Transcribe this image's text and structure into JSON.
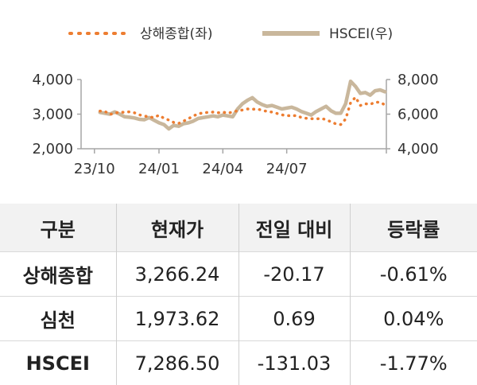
{
  "chart_data": {
    "type": "line",
    "title": "",
    "legend": {
      "placement": "top-center"
    },
    "x_ticks": [
      "23/10",
      "24/01",
      "24/04",
      "24/07"
    ],
    "y_left": {
      "range": [
        2000,
        4000
      ],
      "ticks": [
        "2,000",
        "3,000",
        "4,000"
      ]
    },
    "y_right": {
      "range": [
        4000,
        8000
      ],
      "ticks": [
        "4,000",
        "6,000",
        "8,000"
      ]
    },
    "grid": false,
    "series": [
      {
        "name": "상해종합(좌)",
        "axis": "left",
        "style": "dotted",
        "color": "#ed7d31",
        "points": [
          [
            "2023-10-09",
            3090
          ],
          [
            "2023-10-16",
            3080
          ],
          [
            "2023-10-23",
            2990
          ],
          [
            "2023-10-30",
            3030
          ],
          [
            "2023-11-06",
            3060
          ],
          [
            "2023-11-13",
            3050
          ],
          [
            "2023-11-20",
            3070
          ],
          [
            "2023-11-27",
            3040
          ],
          [
            "2023-12-04",
            2980
          ],
          [
            "2023-12-11",
            2950
          ],
          [
            "2023-12-18",
            2920
          ],
          [
            "2023-12-25",
            2900
          ],
          [
            "2024-01-01",
            2970
          ],
          [
            "2024-01-08",
            2880
          ],
          [
            "2024-01-15",
            2830
          ],
          [
            "2024-01-22",
            2760
          ],
          [
            "2024-01-29",
            2730
          ],
          [
            "2024-02-05",
            2800
          ],
          [
            "2024-02-12",
            2870
          ],
          [
            "2024-02-19",
            2950
          ],
          [
            "2024-02-26",
            3010
          ],
          [
            "2024-03-04",
            3040
          ],
          [
            "2024-03-11",
            3050
          ],
          [
            "2024-03-18",
            3060
          ],
          [
            "2024-03-25",
            3040
          ],
          [
            "2024-04-01",
            3060
          ],
          [
            "2024-04-08",
            3030
          ],
          [
            "2024-04-15",
            3060
          ],
          [
            "2024-04-22",
            3100
          ],
          [
            "2024-04-29",
            3120
          ],
          [
            "2024-05-06",
            3150
          ],
          [
            "2024-05-13",
            3140
          ],
          [
            "2024-05-20",
            3150
          ],
          [
            "2024-05-27",
            3110
          ],
          [
            "2024-06-03",
            3080
          ],
          [
            "2024-06-10",
            3060
          ],
          [
            "2024-06-17",
            3020
          ],
          [
            "2024-06-24",
            2980
          ],
          [
            "2024-07-01",
            2960
          ],
          [
            "2024-07-08",
            2950
          ],
          [
            "2024-07-15",
            2960
          ],
          [
            "2024-07-22",
            2900
          ],
          [
            "2024-07-29",
            2880
          ],
          [
            "2024-08-05",
            2870
          ],
          [
            "2024-08-12",
            2860
          ],
          [
            "2024-08-19",
            2880
          ],
          [
            "2024-08-26",
            2840
          ],
          [
            "2024-09-02",
            2780
          ],
          [
            "2024-09-09",
            2720
          ],
          [
            "2024-09-16",
            2700
          ],
          [
            "2024-09-23",
            2860
          ],
          [
            "2024-09-30",
            3330
          ],
          [
            "2024-10-07",
            3490
          ],
          [
            "2024-10-14",
            3250
          ],
          [
            "2024-10-21",
            3300
          ],
          [
            "2024-10-28",
            3280
          ],
          [
            "2024-11-04",
            3350
          ],
          [
            "2024-11-11",
            3340
          ],
          [
            "2024-11-18",
            3270
          ]
        ]
      },
      {
        "name": "HSCEI(우)",
        "axis": "right",
        "style": "solid",
        "color": "#c9b79c",
        "points": [
          [
            "2023-10-09",
            6100
          ],
          [
            "2023-10-16",
            6050
          ],
          [
            "2023-10-23",
            6000
          ],
          [
            "2023-10-30",
            6130
          ],
          [
            "2023-11-06",
            6000
          ],
          [
            "2023-11-13",
            5850
          ],
          [
            "2023-11-20",
            5820
          ],
          [
            "2023-11-27",
            5780
          ],
          [
            "2023-12-04",
            5700
          ],
          [
            "2023-12-11",
            5680
          ],
          [
            "2023-12-18",
            5800
          ],
          [
            "2023-12-25",
            5650
          ],
          [
            "2024-01-01",
            5500
          ],
          [
            "2024-01-08",
            5400
          ],
          [
            "2024-01-15",
            5150
          ],
          [
            "2024-01-22",
            5350
          ],
          [
            "2024-01-29",
            5300
          ],
          [
            "2024-02-05",
            5450
          ],
          [
            "2024-02-12",
            5500
          ],
          [
            "2024-02-19",
            5600
          ],
          [
            "2024-02-26",
            5750
          ],
          [
            "2024-03-04",
            5800
          ],
          [
            "2024-03-11",
            5850
          ],
          [
            "2024-03-18",
            5900
          ],
          [
            "2024-03-25",
            5850
          ],
          [
            "2024-04-01",
            5950
          ],
          [
            "2024-04-08",
            5900
          ],
          [
            "2024-04-15",
            5850
          ],
          [
            "2024-04-22",
            6300
          ],
          [
            "2024-04-29",
            6600
          ],
          [
            "2024-05-06",
            6800
          ],
          [
            "2024-05-13",
            6950
          ],
          [
            "2024-05-20",
            6700
          ],
          [
            "2024-05-27",
            6550
          ],
          [
            "2024-06-03",
            6450
          ],
          [
            "2024-06-10",
            6500
          ],
          [
            "2024-06-17",
            6400
          ],
          [
            "2024-06-24",
            6300
          ],
          [
            "2024-07-01",
            6350
          ],
          [
            "2024-07-08",
            6400
          ],
          [
            "2024-07-15",
            6300
          ],
          [
            "2024-07-22",
            6150
          ],
          [
            "2024-07-29",
            6050
          ],
          [
            "2024-08-05",
            5950
          ],
          [
            "2024-08-12",
            6150
          ],
          [
            "2024-08-19",
            6300
          ],
          [
            "2024-08-26",
            6450
          ],
          [
            "2024-09-02",
            6200
          ],
          [
            "2024-09-09",
            6050
          ],
          [
            "2024-09-16",
            6050
          ],
          [
            "2024-09-23",
            6600
          ],
          [
            "2024-09-30",
            7900
          ],
          [
            "2024-10-07",
            7600
          ],
          [
            "2024-10-14",
            7200
          ],
          [
            "2024-10-21",
            7250
          ],
          [
            "2024-10-28",
            7100
          ],
          [
            "2024-11-04",
            7350
          ],
          [
            "2024-11-11",
            7400
          ],
          [
            "2024-11-18",
            7290
          ]
        ]
      }
    ]
  },
  "table": {
    "headers": [
      "구분",
      "현재가",
      "전일 대비",
      "등락률"
    ],
    "rows": [
      [
        "상해종합",
        "3,266.24",
        "-20.17",
        "-0.61%"
      ],
      [
        "심천",
        "1,973.62",
        "0.69",
        "0.04%"
      ],
      [
        "HSCEI",
        "7,286.50",
        "-131.03",
        "-1.77%"
      ]
    ]
  },
  "colors": {
    "header_bg": "#f2f2f2",
    "axis": "#a6a6a6"
  }
}
